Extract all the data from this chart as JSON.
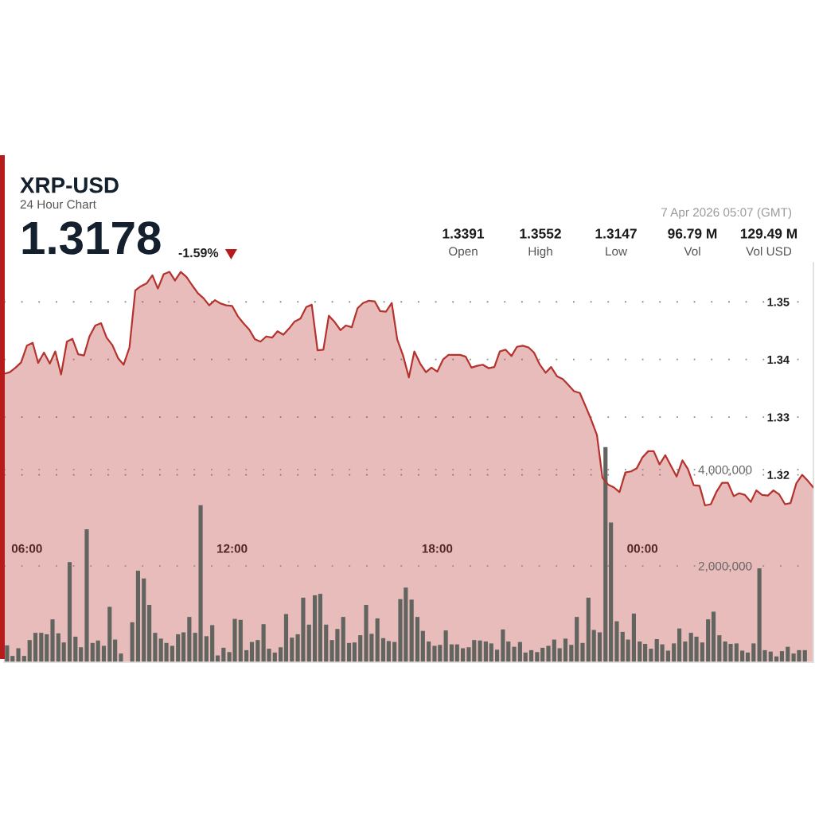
{
  "chart_data": {
    "type": "area",
    "title": "XRP-USD",
    "subtitle": "24 Hour Chart",
    "annotations": [
      "1.3178",
      "-1.59%",
      "1.3391",
      "Open",
      "1.3552",
      "High",
      "1.3147",
      "Low",
      "96.79 M",
      "Vol",
      "129.49 M",
      "Vol USD",
      "7 Apr 2026 05:07 (GMT)"
    ],
    "x": [
      5.33,
      5.5,
      5.67,
      5.83,
      6,
      6.17,
      6.33,
      6.5,
      6.67,
      6.83,
      7,
      7.17,
      7.33,
      7.5,
      7.67,
      7.83,
      8,
      8.17,
      8.33,
      8.5,
      8.67,
      8.83,
      9,
      9.17,
      9.33,
      9.5,
      9.67,
      9.83,
      10,
      10.17,
      10.33,
      10.5,
      10.67,
      10.83,
      11,
      11.17,
      11.33,
      11.5,
      11.67,
      11.83,
      12,
      12.17,
      12.33,
      12.5,
      12.67,
      12.83,
      13,
      13.17,
      13.33,
      13.5,
      13.67,
      13.83,
      14,
      14.17,
      14.33,
      14.5,
      14.67,
      14.83,
      15,
      15.17,
      15.33,
      15.5,
      15.67,
      15.83,
      16,
      16.17,
      16.33,
      16.5,
      16.67,
      16.83,
      17,
      17.17,
      17.33,
      17.5,
      17.67,
      17.83,
      18,
      18.17,
      18.33,
      18.5,
      18.67,
      18.83,
      19,
      19.17,
      19.33,
      19.5,
      19.67,
      19.83,
      20,
      20.17,
      20.33,
      20.5,
      20.67,
      20.83,
      21,
      21.17,
      21.33,
      21.5,
      21.67,
      21.83,
      22,
      22.17,
      22.33,
      22.5,
      22.67,
      22.83,
      23,
      23.17,
      23.33,
      23.5,
      23.67,
      23.83,
      24,
      24.17,
      24.33,
      24.5,
      24.67,
      24.83,
      25,
      25.17,
      25.33,
      25.5,
      25.67,
      25.83,
      26,
      26.17,
      26.33,
      26.5,
      26.67,
      26.83,
      27,
      27.17,
      27.33,
      27.5,
      27.67,
      27.83,
      28,
      28.17,
      28.33,
      28.5,
      28.67,
      28.83,
      29
    ],
    "xlim": [
      5.33,
      29
    ],
    "xticks": [
      {
        "value": 6,
        "label": "06:00"
      },
      {
        "value": 12,
        "label": "12:00"
      },
      {
        "value": 18,
        "label": "18:00"
      },
      {
        "value": 24,
        "label": "00:00"
      }
    ],
    "ylim": [
      1.2875,
      1.3568
    ],
    "yticks": [
      1.32,
      1.33,
      1.34,
      1.35
    ],
    "y2lim": [
      0,
      8300000
    ],
    "y2ticks": [
      {
        "value": 2000000,
        "label": "2,000,000"
      },
      {
        "value": 4000000,
        "label": "4,000,000"
      }
    ],
    "grid": "y",
    "series": [
      {
        "color": "#b5332e",
        "values": [
          1.3375,
          1.3378,
          1.3386,
          1.3395,
          1.3424,
          1.3429,
          1.3394,
          1.3412,
          1.3393,
          1.3414,
          1.3374,
          1.3431,
          1.3436,
          1.3409,
          1.3407,
          1.344,
          1.3459,
          1.3463,
          1.3438,
          1.3425,
          1.3402,
          1.3391,
          1.3421,
          1.352,
          1.3527,
          1.3532,
          1.3546,
          1.3523,
          1.3548,
          1.3552,
          1.3537,
          1.3552,
          1.3543,
          1.3529,
          1.3515,
          1.3506,
          1.3494,
          1.3503,
          1.3497,
          1.3494,
          1.3493,
          1.3475,
          1.3463,
          1.3452,
          1.3435,
          1.3431,
          1.344,
          1.3438,
          1.3449,
          1.3443,
          1.3454,
          1.3466,
          1.3471,
          1.3491,
          1.3495,
          1.3416,
          1.3417,
          1.3476,
          1.3465,
          1.3451,
          1.3459,
          1.3456,
          1.3489,
          1.3498,
          1.3502,
          1.3501,
          1.3484,
          1.3483,
          1.3498,
          1.3435,
          1.3407,
          1.3369,
          1.3414,
          1.3393,
          1.3378,
          1.3386,
          1.3379,
          1.34,
          1.3408,
          1.3408,
          1.3408,
          1.3405,
          1.3386,
          1.3389,
          1.3391,
          1.3385,
          1.3387,
          1.3414,
          1.3417,
          1.3406,
          1.3422,
          1.3424,
          1.3421,
          1.3412,
          1.3391,
          1.3377,
          1.3387,
          1.3371,
          1.3366,
          1.3356,
          1.3345,
          1.3342,
          1.332,
          1.3296,
          1.3269,
          1.3195,
          1.3183,
          1.3178,
          1.317,
          1.3204,
          1.3206,
          1.3211,
          1.323,
          1.3241,
          1.3241,
          1.3218,
          1.3234,
          1.3216,
          1.3197,
          1.3225,
          1.321,
          1.3182,
          1.3181,
          1.3147,
          1.3149,
          1.3171,
          1.3186,
          1.3186,
          1.3163,
          1.3168,
          1.3165,
          1.3153,
          1.3173,
          1.3165,
          1.3164,
          1.3173,
          1.3166,
          1.3149,
          1.3151,
          1.3185,
          1.32,
          1.319,
          1.3178
        ]
      },
      {
        "type": "bar",
        "axis": "y2",
        "color": "#62645f",
        "x": [
          5.42,
          5.58,
          5.75,
          5.92,
          6.08,
          6.25,
          6.42,
          6.58,
          6.75,
          6.92,
          7.08,
          7.25,
          7.42,
          7.58,
          7.75,
          7.92,
          8.08,
          8.25,
          8.42,
          8.58,
          8.75,
          8.92,
          9.08,
          9.25,
          9.42,
          9.58,
          9.75,
          9.92,
          10.08,
          10.25,
          10.42,
          10.58,
          10.75,
          10.92,
          11.08,
          11.25,
          11.42,
          11.58,
          11.75,
          11.92,
          12.08,
          12.25,
          12.42,
          12.58,
          12.75,
          12.92,
          13.08,
          13.25,
          13.42,
          13.58,
          13.75,
          13.92,
          14.08,
          14.25,
          14.42,
          14.58,
          14.75,
          14.92,
          15.08,
          15.25,
          15.42,
          15.58,
          15.75,
          15.92,
          16.08,
          16.25,
          16.42,
          16.58,
          16.75,
          16.92,
          17.08,
          17.25,
          17.42,
          17.58,
          17.75,
          17.92,
          18.08,
          18.25,
          18.42,
          18.58,
          18.75,
          18.92,
          19.08,
          19.25,
          19.42,
          19.58,
          19.75,
          19.92,
          20.08,
          20.25,
          20.42,
          20.58,
          20.75,
          20.92,
          21.08,
          21.25,
          21.42,
          21.58,
          21.75,
          21.92,
          22.08,
          22.25,
          22.42,
          22.58,
          22.75,
          22.92,
          23.08,
          23.25,
          23.42,
          23.58,
          23.75,
          23.92,
          24.08,
          24.25,
          24.42,
          24.58,
          24.75,
          24.92,
          25.08,
          25.25,
          25.42,
          25.58,
          25.75,
          25.92,
          26.08,
          26.25,
          26.42,
          26.58,
          26.75,
          26.92,
          27.08,
          27.25,
          27.42,
          27.58,
          27.75,
          27.92,
          28.08,
          28.25,
          28.42,
          28.58,
          28.75
        ],
        "values": [
          350000,
          130000,
          290000,
          130000,
          460000,
          610000,
          610000,
          580000,
          890000,
          600000,
          410000,
          2080000,
          530000,
          310000,
          2760000,
          400000,
          450000,
          340000,
          1150000,
          470000,
          180000,
          null,
          830000,
          1900000,
          1740000,
          1190000,
          610000,
          490000,
          400000,
          340000,
          580000,
          620000,
          940000,
          610000,
          3260000,
          540000,
          770000,
          140000,
          300000,
          210000,
          900000,
          880000,
          250000,
          420000,
          460000,
          790000,
          280000,
          200000,
          310000,
          1000000,
          510000,
          580000,
          1340000,
          780000,
          1390000,
          1420000,
          780000,
          460000,
          690000,
          940000,
          400000,
          410000,
          560000,
          1190000,
          590000,
          910000,
          500000,
          440000,
          420000,
          1310000,
          1550000,
          1300000,
          940000,
          650000,
          430000,
          340000,
          360000,
          660000,
          370000,
          370000,
          290000,
          310000,
          460000,
          450000,
          430000,
          390000,
          260000,
          680000,
          430000,
          320000,
          420000,
          200000,
          250000,
          210000,
          300000,
          340000,
          470000,
          290000,
          490000,
          360000,
          940000,
          400000,
          1340000,
          670000,
          620000,
          4470000,
          2900000,
          850000,
          630000,
          470000,
          1010000,
          430000,
          380000,
          280000,
          480000,
          370000,
          240000,
          390000,
          700000,
          430000,
          610000,
          530000,
          410000,
          890000,
          1050000,
          560000,
          430000,
          380000,
          390000,
          240000,
          200000,
          390000,
          1950000,
          250000,
          220000,
          120000,
          230000,
          320000,
          180000,
          250000,
          250000
        ]
      }
    ]
  }
}
